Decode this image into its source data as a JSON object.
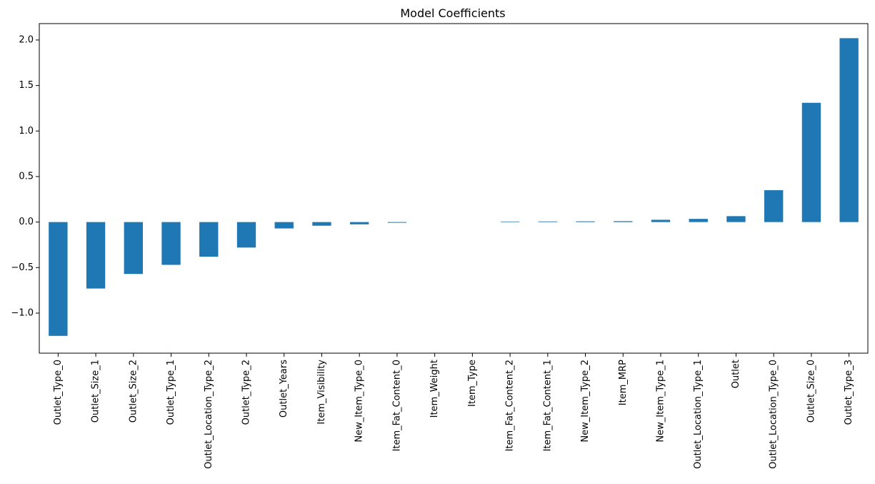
{
  "chart_data": {
    "type": "bar",
    "title": "Model Coefficients",
    "xlabel": "",
    "ylabel": "",
    "categories": [
      "Outlet_Type_0",
      "Outlet_Size_1",
      "Outlet_Size_2",
      "Outlet_Type_1",
      "Outlet_Location_Type_2",
      "Outlet_Type_2",
      "Outlet_Years",
      "Item_Visibility",
      "New_Item_Type_0",
      "Item_Fat_Content_0",
      "Item_Weight",
      "Item_Type",
      "Item_Fat_Content_2",
      "Item_Fat_Content_1",
      "New_Item_Type_2",
      "Item_MRP",
      "New_Item_Type_1",
      "Outlet_Location_Type_1",
      "Outlet",
      "Outlet_Location_Type_0",
      "Outlet_Size_0",
      "Outlet_Type_3"
    ],
    "values": [
      -1.25,
      -0.73,
      -0.57,
      -0.47,
      -0.38,
      -0.28,
      -0.07,
      -0.04,
      -0.025,
      -0.008,
      0.0,
      0.0,
      0.006,
      0.007,
      0.008,
      0.01,
      0.025,
      0.035,
      0.065,
      0.35,
      1.31,
      2.02
    ],
    "ylim": [
      -1.44,
      2.18
    ],
    "yticks": [
      -1.0,
      -0.5,
      0.0,
      0.5,
      1.0,
      1.5,
      2.0
    ],
    "ytick_labels": [
      "−1.0",
      "−0.5",
      "0.0",
      "0.5",
      "1.0",
      "1.5",
      "2.0"
    ],
    "bar_color": "#1f77b4",
    "grid": false,
    "legend": "none"
  }
}
